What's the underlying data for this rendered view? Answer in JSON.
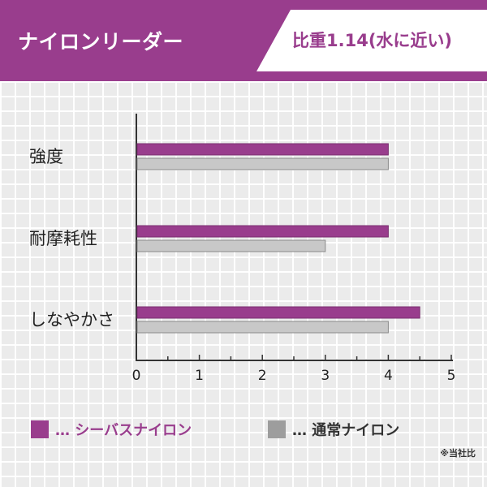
{
  "header": {
    "title": "ナイロンリーダー",
    "badge": "比重1.14(水に近い)"
  },
  "colors": {
    "header_bg": "#993d8d",
    "purple": "#993d8d",
    "gray": "#c8c8c8",
    "axis": "#333333"
  },
  "chart_data": {
    "type": "bar",
    "orientation": "horizontal",
    "categories": [
      "強度",
      "耐摩耗性",
      "しなやかさ"
    ],
    "series": [
      {
        "name": "シーバスナイロン",
        "values": [
          4,
          4,
          4.5
        ]
      },
      {
        "name": "通常ナイロン",
        "values": [
          4,
          3,
          4
        ]
      }
    ],
    "xlim": [
      0,
      5
    ],
    "xticks": [
      "0",
      "1",
      "2",
      "3",
      "4",
      "5"
    ],
    "minor_ticks": true,
    "grid": false,
    "legend_position": "bottom"
  },
  "legend": {
    "items": [
      {
        "label": "… シーバスナイロン"
      },
      {
        "label": "… 通常ナイロン"
      }
    ]
  },
  "footnote": "※当社比"
}
